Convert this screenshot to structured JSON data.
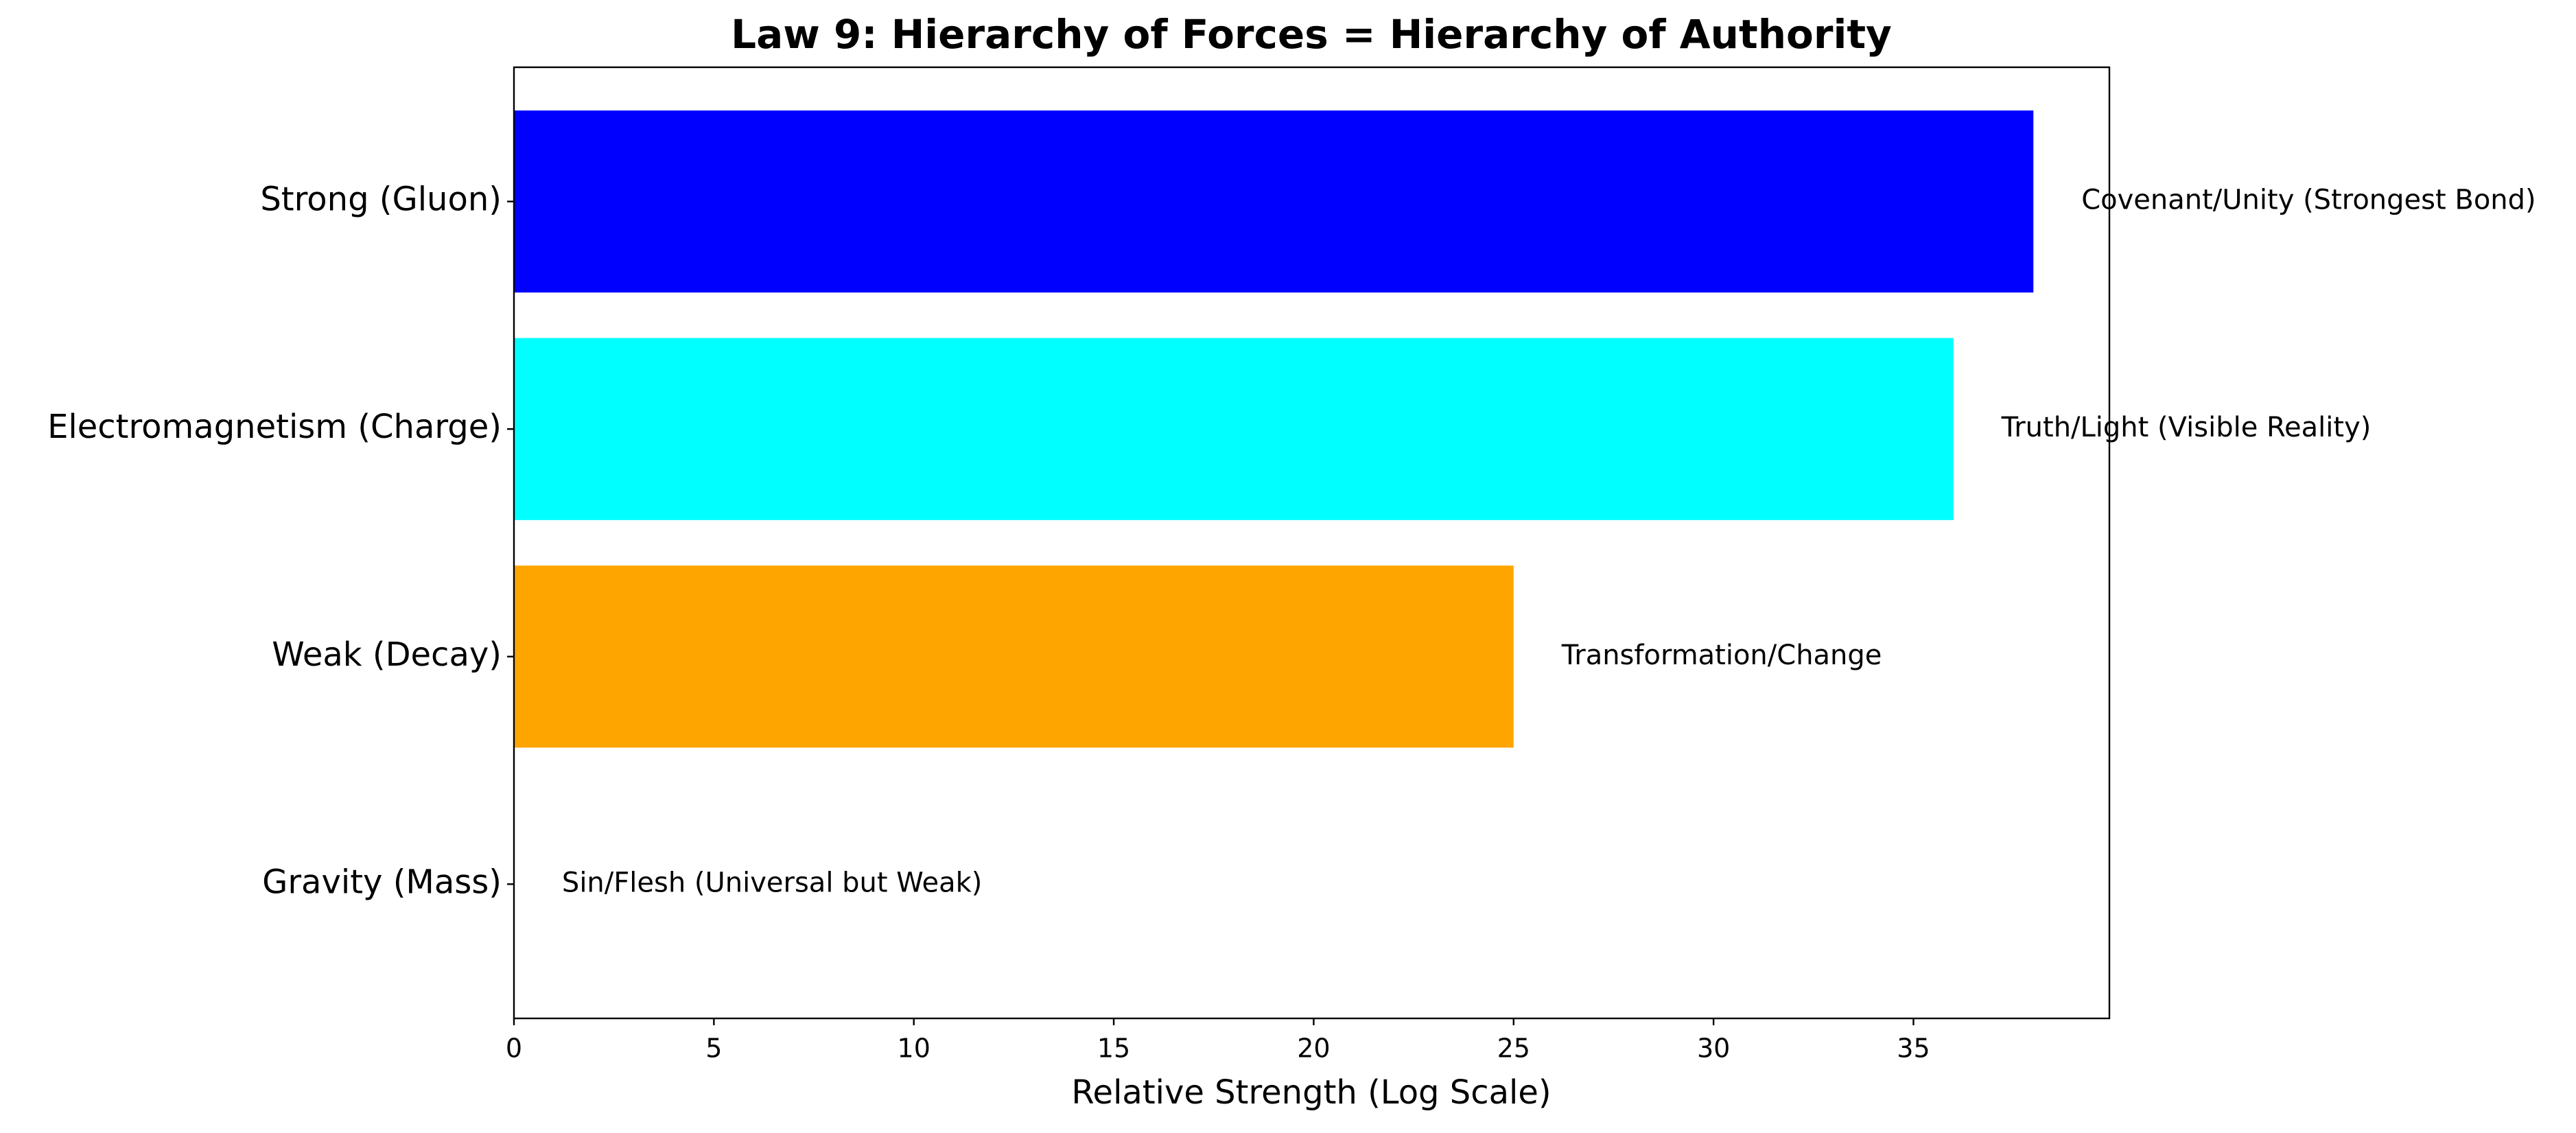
{
  "chart_data": {
    "type": "bar",
    "orientation": "horizontal",
    "title": "Law 9: Hierarchy of Forces = Hierarchy of Authority",
    "x_label": "Relative Strength (Log Scale)",
    "categories": [
      "Strong (Gluon)",
      "Electromagnetism (Charge)",
      "Weak (Decay)",
      "Gravity (Mass)"
    ],
    "values": [
      38,
      36,
      25,
      0
    ],
    "colors": [
      "#0000ff",
      "#00ffff",
      "#ffa500",
      "#800080"
    ],
    "annotations": [
      "Covenant/Unity (Strongest Bond)",
      "Truth/Light (Visible Reality)",
      "Transformation/Change",
      "Sin/Flesh (Universal but Weak)"
    ],
    "xlim": [
      0,
      39.9
    ],
    "xticks": [
      0,
      5,
      10,
      15,
      20,
      25,
      30,
      35
    ],
    "grid": false
  }
}
